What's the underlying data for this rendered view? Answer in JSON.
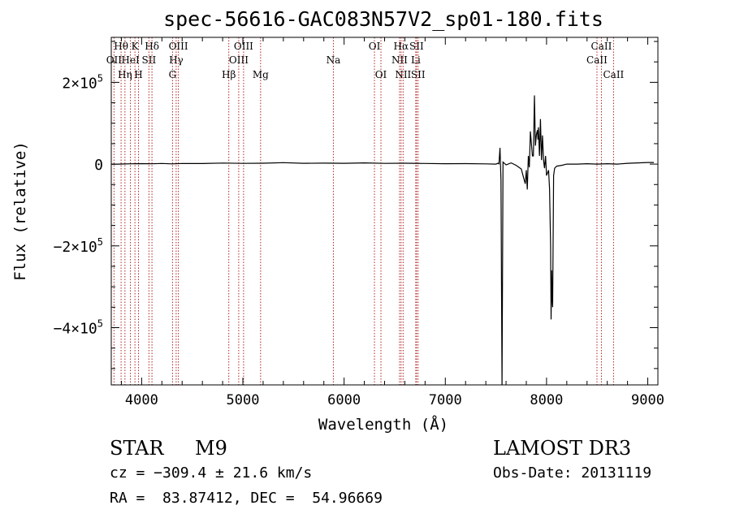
{
  "chart_data": {
    "type": "line",
    "title": "spec-56616-GAC083N57V2_sp01-180.fits",
    "xlabel": "Wavelength (Å)",
    "ylabel": "Flux (relative)",
    "xlim": [
      3700,
      9100
    ],
    "ylim": [
      -540000,
      310000
    ],
    "x_ticks": [
      {
        "value": 4000,
        "label": "4000"
      },
      {
        "value": 5000,
        "label": "5000"
      },
      {
        "value": 6000,
        "label": "6000"
      },
      {
        "value": 7000,
        "label": "7000"
      },
      {
        "value": 8000,
        "label": "8000"
      },
      {
        "value": 9000,
        "label": "9000"
      }
    ],
    "y_ticks": [
      {
        "value": 200000,
        "mant": "2×10",
        "exp": "5"
      },
      {
        "value": 0,
        "mant": "0",
        "exp": ""
      },
      {
        "value": -200000,
        "mant": "−2×10",
        "exp": "5"
      },
      {
        "value": -400000,
        "mant": "−4×10",
        "exp": "5"
      }
    ],
    "line_color": "#000000",
    "marker_color": "#b22222",
    "lines": [
      {
        "label": "OII",
        "wl": 3727,
        "row": 2
      },
      {
        "label": "Hθ",
        "wl": 3797,
        "row": 1
      },
      {
        "label": "Hη",
        "wl": 3835,
        "row": 3
      },
      {
        "label": "HeI",
        "wl": 3889,
        "row": 2
      },
      {
        "label": "K",
        "wl": 3934,
        "row": 1
      },
      {
        "label": "H",
        "wl": 3969,
        "row": 3
      },
      {
        "label": "SII",
        "wl": 4072,
        "row": 2
      },
      {
        "label": "Hδ",
        "wl": 4102,
        "row": 1
      },
      {
        "label": "G",
        "wl": 4305,
        "row": 3
      },
      {
        "label": "Hγ",
        "wl": 4341,
        "row": 2
      },
      {
        "label": "OIII",
        "wl": 4363,
        "row": 1
      },
      {
        "label": "Hβ",
        "wl": 4861,
        "row": 3
      },
      {
        "label": "OIII",
        "wl": 4959,
        "row": 2
      },
      {
        "label": "OIII",
        "wl": 5007,
        "row": 1
      },
      {
        "label": "Mg",
        "wl": 5175,
        "row": 3
      },
      {
        "label": "Na",
        "wl": 5894,
        "row": 2
      },
      {
        "label": "OI",
        "wl": 6300,
        "row": 1
      },
      {
        "label": "OI",
        "wl": 6364,
        "row": 3
      },
      {
        "label": "NII",
        "wl": 6548,
        "row": 2
      },
      {
        "label": "Hα",
        "wl": 6563,
        "row": 1
      },
      {
        "label": "NII",
        "wl": 6583,
        "row": 3
      },
      {
        "label": "Li",
        "wl": 6708,
        "row": 2
      },
      {
        "label": "SII",
        "wl": 6716,
        "row": 1
      },
      {
        "label": "SII",
        "wl": 6731,
        "row": 3
      },
      {
        "label": "CaII",
        "wl": 8498,
        "row": 2
      },
      {
        "label": "CaII",
        "wl": 8542,
        "row": 1
      },
      {
        "label": "CaII",
        "wl": 8662,
        "row": 3
      }
    ],
    "series": [
      {
        "x": [
          3700,
          3800,
          3900,
          4000,
          4100,
          4200,
          4300,
          4400,
          4600,
          4800,
          5000,
          5200,
          5400,
          5600,
          5800,
          6000,
          6200,
          6400,
          6600,
          6800,
          7000,
          7200,
          7400,
          7500,
          7520,
          7530,
          7540,
          7550,
          7560,
          7570,
          7600,
          7650,
          7700,
          7750,
          7770,
          7790,
          7800,
          7810,
          7820,
          7830,
          7840,
          7860,
          7870,
          7880,
          7890,
          7900,
          7910,
          7915,
          7920,
          7930,
          7940,
          7950,
          7960,
          7970,
          7980,
          7990,
          8000,
          8020,
          8030,
          8040,
          8045,
          8050,
          8055,
          8060,
          8070,
          8080,
          8100,
          8150,
          8200,
          8300,
          8400,
          8500,
          8600,
          8700,
          8800,
          8900,
          9000,
          9060
        ],
        "y": [
          -500,
          200,
          800,
          1200,
          800,
          1600,
          600,
          1500,
          1400,
          2600,
          1800,
          2200,
          3500,
          2000,
          2400,
          2000,
          3000,
          1800,
          2200,
          1500,
          1000,
          1200,
          500,
          0,
          2000,
          500,
          40000,
          -40000,
          -545000,
          5000,
          -2000,
          3000,
          -3000,
          -12000,
          -30000,
          -48000,
          -15000,
          -62000,
          20000,
          -8000,
          80000,
          20000,
          20000,
          168000,
          45000,
          72000,
          83000,
          60000,
          90000,
          20000,
          110000,
          10000,
          70000,
          10000,
          -10000,
          20000,
          -28000,
          -15000,
          -60000,
          -200000,
          -380000,
          -260000,
          -330000,
          -350000,
          -28000,
          -10000,
          -5000,
          -3000,
          0,
          0,
          1000,
          0,
          1000,
          0,
          2000,
          3000,
          4000,
          4000
        ]
      }
    ]
  },
  "info": {
    "class": "STAR",
    "subclass": "M9",
    "survey": "LAMOST DR3",
    "cz": "cz = −309.4 ± 21.6 km/s",
    "obs_date": "Obs-Date: 20131119",
    "radec": "RA =  83.87412, DEC =  54.96669"
  }
}
